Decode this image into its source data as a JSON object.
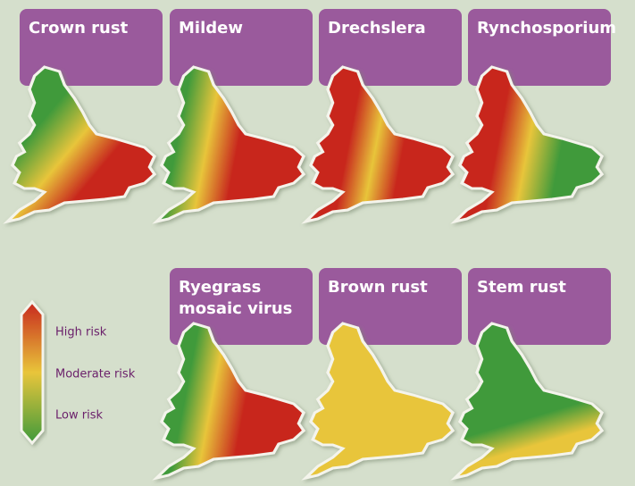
{
  "panels": [
    {
      "title_lines": [
        "Crown rust"
      ]
    },
    {
      "title_lines": [
        "Mildew"
      ]
    },
    {
      "title_lines": [
        "Drechslera"
      ]
    },
    {
      "title_lines": [
        "Rynchosporium"
      ]
    },
    {
      "title_lines": [
        "Ryegrass",
        "mosaic virus"
      ]
    },
    {
      "title_lines": [
        "Brown rust"
      ]
    },
    {
      "title_lines": [
        "Stem rust"
      ]
    }
  ],
  "legend": {
    "labels": [
      "High risk",
      "Moderate risk",
      "Low risk"
    ]
  }
}
